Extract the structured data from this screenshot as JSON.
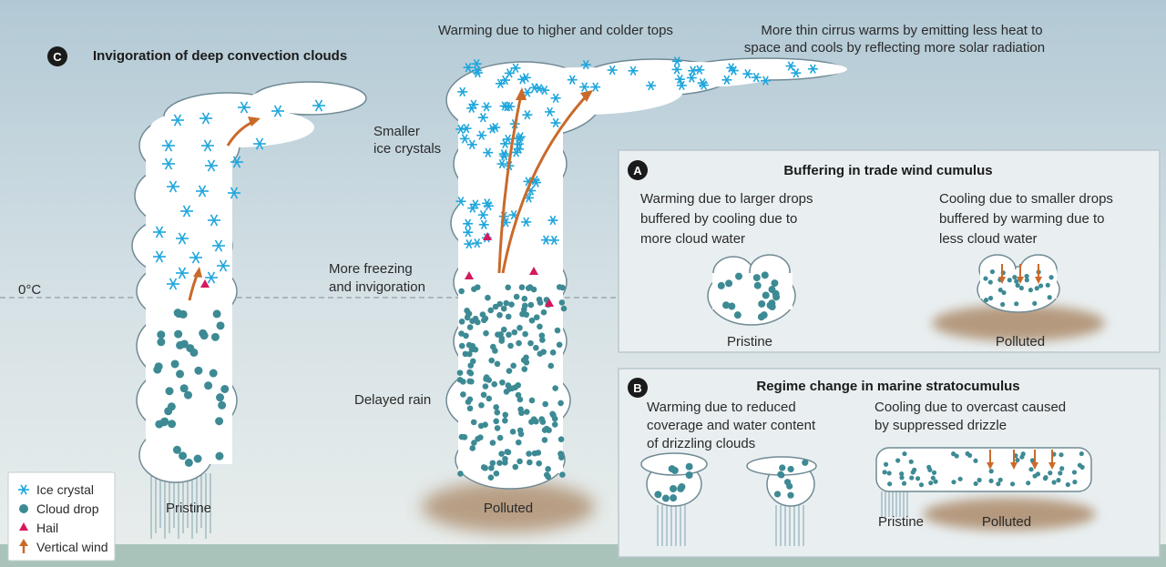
{
  "panel_c": {
    "badge": "C",
    "title": "Invigoration of deep convection clouds",
    "top_label_1": "Warming due to higher and colder tops",
    "top_label_2_line1": "More thin cirrus warms by emitting less heat to",
    "top_label_2_line2": "space and cools by reflecting more solar radiation",
    "smaller_ice_line1": "Smaller",
    "smaller_ice_line2": "ice crystals",
    "freezing_line1": "More freezing",
    "freezing_line2": "and invigoration",
    "zero_c": "0°C",
    "delayed_rain": "Delayed rain",
    "pristine": "Pristine",
    "polluted": "Polluted"
  },
  "panel_a": {
    "badge": "A",
    "title": "Buffering in trade wind cumulus",
    "left_line1": "Warming due to larger drops",
    "left_line2": "buffered by cooling due to",
    "left_line3": "more cloud water",
    "right_line1": "Cooling due to smaller drops",
    "right_line2": "buffered by warming due to",
    "right_line3": "less cloud water",
    "pristine": "Pristine",
    "polluted": "Polluted"
  },
  "panel_b": {
    "badge": "B",
    "title": "Regime change in marine stratocumulus",
    "left_line1": "Warming due to reduced",
    "left_line2": "coverage and water content",
    "left_line3": "of drizzling clouds",
    "right_line1": "Cooling due to overcast caused",
    "right_line2": "by suppressed drizzle",
    "pristine": "Pristine",
    "polluted": "Polluted"
  },
  "legend": [
    {
      "label": "Ice crystal",
      "icon": "ice-crystal-icon"
    },
    {
      "label": "Cloud drop",
      "icon": "cloud-drop-icon"
    },
    {
      "label": "Hail",
      "icon": "hail-icon"
    },
    {
      "label": "Vertical wind",
      "icon": "vertical-wind-icon"
    }
  ],
  "colors": {
    "sky_top": "#b3cad6",
    "sky_bottom": "#e6ecea",
    "ground": "#a9c3bb",
    "ice": "#1fa6dc",
    "drop": "#3d8a94",
    "hail": "#d6185e",
    "wind": "#c96a2a",
    "aerosol": "#a88462",
    "panel_bg": "#e9eff1"
  }
}
